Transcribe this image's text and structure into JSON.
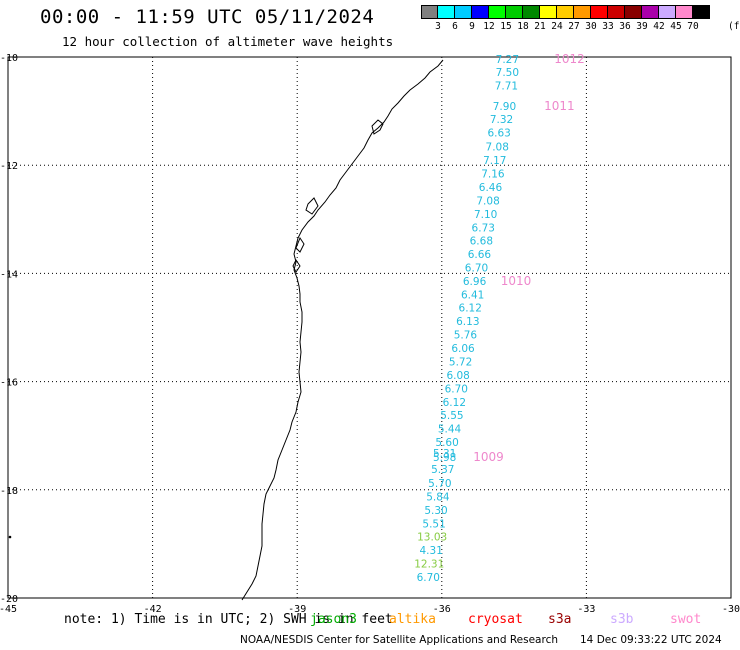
{
  "header": {
    "title": "00:00 - 11:59 UTC 05/11/2024",
    "subtitle": "12 hour collection of altimeter wave heights"
  },
  "legend": {
    "colors": [
      "#808080",
      "#00ffff",
      "#00ccff",
      "#0000ff",
      "#00ff00",
      "#00cc00",
      "#008800",
      "#ffff00",
      "#ffcc00",
      "#ff9900",
      "#ff0000",
      "#cc0000",
      "#880000",
      "#aa00aa",
      "#ccaaff",
      "#ff88cc",
      "#000000"
    ],
    "labels": [
      "3",
      "6",
      "9",
      "12",
      "15",
      "18",
      "21",
      "24",
      "27",
      "30",
      "33",
      "36",
      "39",
      "42",
      "45",
      "70"
    ],
    "unit": "(ft)"
  },
  "axes": {
    "lon_labels": [
      "-45",
      "-42",
      "-39",
      "-36",
      "-33",
      "-30"
    ],
    "lat_labels": [
      "-10",
      "-12",
      "-14",
      "-16",
      "-18",
      "-20"
    ],
    "lon_values": [
      -45,
      -42,
      -39,
      -36,
      -33,
      -30
    ],
    "lat_values": [
      -10,
      -12,
      -14,
      -16,
      -18,
      -20
    ]
  },
  "wave_heights": [
    {
      "v": "7.27",
      "lon": -34.64,
      "lat": -10.04,
      "color": "#22bbdd"
    },
    {
      "v": "7.50",
      "lon": -34.64,
      "lat": -10.28,
      "color": "#22bbdd"
    },
    {
      "v": "7.71",
      "lon": -34.66,
      "lat": -10.53,
      "color": "#22bbdd"
    },
    {
      "v": "7.90",
      "lon": -34.7,
      "lat": -10.91,
      "color": "#22bbdd"
    },
    {
      "v": "7.32",
      "lon": -34.76,
      "lat": -11.15,
      "color": "#22bbdd"
    },
    {
      "v": "6.63",
      "lon": -34.81,
      "lat": -11.4,
      "color": "#22bbdd"
    },
    {
      "v": "7.08",
      "lon": -34.85,
      "lat": -11.65,
      "color": "#22bbdd"
    },
    {
      "v": "7.17",
      "lon": -34.9,
      "lat": -11.9,
      "color": "#22bbdd"
    },
    {
      "v": "7.16",
      "lon": -34.94,
      "lat": -12.15,
      "color": "#22bbdd"
    },
    {
      "v": "6.46",
      "lon": -34.99,
      "lat": -12.4,
      "color": "#22bbdd"
    },
    {
      "v": "7.08",
      "lon": -35.04,
      "lat": -12.65,
      "color": "#22bbdd"
    },
    {
      "v": "7.10",
      "lon": -35.09,
      "lat": -12.9,
      "color": "#22bbdd"
    },
    {
      "v": "6.73",
      "lon": -35.14,
      "lat": -13.15,
      "color": "#22bbdd"
    },
    {
      "v": "6.68",
      "lon": -35.18,
      "lat": -13.39,
      "color": "#22bbdd"
    },
    {
      "v": "6.66",
      "lon": -35.22,
      "lat": -13.64,
      "color": "#22bbdd"
    },
    {
      "v": "6.70",
      "lon": -35.28,
      "lat": -13.89,
      "color": "#22bbdd"
    },
    {
      "v": "6.96",
      "lon": -35.32,
      "lat": -14.14,
      "color": "#22bbdd"
    },
    {
      "v": "6.41",
      "lon": -35.36,
      "lat": -14.39,
      "color": "#22bbdd"
    },
    {
      "v": "6.12",
      "lon": -35.41,
      "lat": -14.63,
      "color": "#22bbdd"
    },
    {
      "v": "6.13",
      "lon": -35.46,
      "lat": -14.88,
      "color": "#22bbdd"
    },
    {
      "v": "5.76",
      "lon": -35.51,
      "lat": -15.13,
      "color": "#22bbdd"
    },
    {
      "v": "6.06",
      "lon": -35.56,
      "lat": -15.38,
      "color": "#22bbdd"
    },
    {
      "v": "5.72",
      "lon": -35.61,
      "lat": -15.63,
      "color": "#22bbdd"
    },
    {
      "v": "6.08",
      "lon": -35.66,
      "lat": -15.88,
      "color": "#22bbdd"
    },
    {
      "v": "6.70",
      "lon": -35.7,
      "lat": -16.13,
      "color": "#22bbdd"
    },
    {
      "v": "6.12",
      "lon": -35.74,
      "lat": -16.38,
      "color": "#22bbdd"
    },
    {
      "v": "5.55",
      "lon": -35.79,
      "lat": -16.62,
      "color": "#22bbdd"
    },
    {
      "v": "5.44",
      "lon": -35.84,
      "lat": -16.87,
      "color": "#22bbdd"
    },
    {
      "v": "5.60",
      "lon": -35.89,
      "lat": -17.12,
      "color": "#22bbdd"
    },
    {
      "v": "5.31",
      "lon": -35.94,
      "lat": -17.32,
      "color": "#22bbdd"
    },
    {
      "v": "5.98",
      "lon": -35.94,
      "lat": -17.39,
      "color": "#22bbdd"
    },
    {
      "v": "5.37",
      "lon": -35.98,
      "lat": -17.62,
      "color": "#22bbdd"
    },
    {
      "v": "5.70",
      "lon": -36.04,
      "lat": -17.87,
      "color": "#22bbdd"
    },
    {
      "v": "5.84",
      "lon": -36.08,
      "lat": -18.12,
      "color": "#22bbdd"
    },
    {
      "v": "5.30",
      "lon": -36.12,
      "lat": -18.37,
      "color": "#22bbdd"
    },
    {
      "v": "5.51",
      "lon": -36.16,
      "lat": -18.62,
      "color": "#22bbdd"
    },
    {
      "v": "13.03",
      "lon": -36.2,
      "lat": -18.86,
      "color": "#88cc44"
    },
    {
      "v": "4.31",
      "lon": -36.22,
      "lat": -19.11,
      "color": "#22bbdd"
    },
    {
      "v": "12.31",
      "lon": -36.26,
      "lat": -19.36,
      "color": "#88cc44"
    },
    {
      "v": "6.70",
      "lon": -36.28,
      "lat": -19.61,
      "color": "#22bbdd"
    }
  ],
  "pressures": [
    {
      "v": "1012",
      "lon": -33.35,
      "lat": -10.04
    },
    {
      "v": "1011",
      "lon": -33.56,
      "lat": -10.91
    },
    {
      "v": "1010",
      "lon": -34.46,
      "lat": -14.14
    },
    {
      "v": "1009",
      "lon": -35.03,
      "lat": -17.39
    }
  ],
  "footer": {
    "note": "note: 1) Time is in UTC; 2) SWH is in feet",
    "satellites": [
      {
        "name": "jason3",
        "color": "#00aa00"
      },
      {
        "name": "altika",
        "color": "#ff9900"
      },
      {
        "name": "cryosat",
        "color": "#ff0000"
      },
      {
        "name": "s3a",
        "color": "#990000"
      },
      {
        "name": "s3b",
        "color": "#ccaaff"
      },
      {
        "name": "swot",
        "color": "#ff88cc"
      }
    ],
    "credit": "NOAA/NESDIS Center for Satellite Applications and Research",
    "timestamp": "14 Dec 09:33:22 UTC 2024"
  }
}
